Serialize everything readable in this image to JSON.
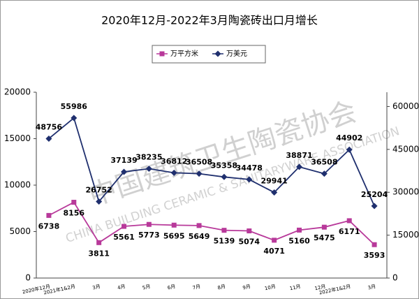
{
  "chart_data": {
    "type": "line",
    "title": "2020年12月-2022年3月陶瓷砖出口月增长",
    "watermark": [
      "中国建筑卫生陶瓷协会",
      "CHINA BUILDING CERAMIC & SANITARYWARE ASSOCIATION"
    ],
    "categories": [
      "2020年12月",
      "2021年1&2月",
      "3月",
      "4月",
      "5月",
      "6月",
      "7月",
      "8月",
      "9月",
      "10月",
      "11月",
      "12月",
      "2022年1&2月",
      "3月"
    ],
    "series": [
      {
        "name": "万平方米",
        "color": "#b8399a",
        "marker": "square",
        "values": [
          6738,
          8156,
          3811,
          5561,
          5773,
          5695,
          5649,
          5139,
          5074,
          4071,
          5160,
          5475,
          6171,
          3593
        ]
      },
      {
        "name": "万美元",
        "color": "#1f2f6e",
        "marker": "diamond",
        "axis": "y2",
        "values": [
          48756,
          55986,
          26752,
          37139,
          38235,
          36812,
          36508,
          35358,
          34478,
          29941,
          38871,
          36508,
          44902,
          25204
        ]
      }
    ],
    "ylim": [
      0,
      20000
    ],
    "yticks": [
      0,
      5000,
      10000,
      15000,
      20000
    ],
    "y2lim": [
      0,
      65000
    ],
    "y2ticks": [
      0,
      15000,
      30000,
      45000,
      60000
    ],
    "grid": false,
    "legend": "top"
  }
}
